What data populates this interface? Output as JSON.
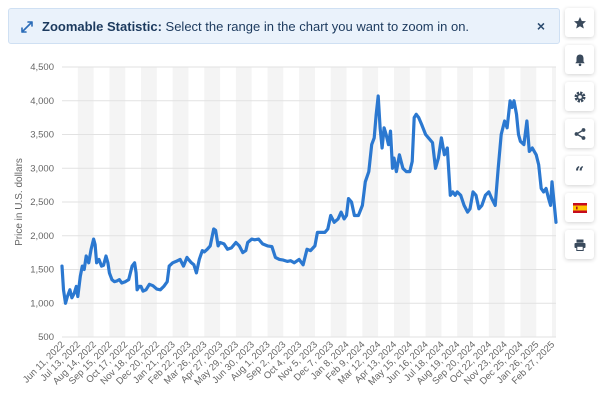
{
  "banner": {
    "title": "Zoomable Statistic:",
    "text": " Select the range in the chart you want to zoom in on.",
    "close_glyph": "×",
    "icon": "expand-arrows-icon"
  },
  "toolbar": {
    "buttons": [
      {
        "icon": "star-icon"
      },
      {
        "icon": "bell-icon"
      },
      {
        "icon": "gear-icon"
      },
      {
        "icon": "share-icon"
      },
      {
        "icon": "quote-icon",
        "glyph": "“"
      },
      {
        "icon": "spanish-flag-icon"
      },
      {
        "icon": "print-icon"
      }
    ]
  },
  "colors": {
    "line": "#2b78d0",
    "grid": "#e2e2e2",
    "band": "#f4f4f4"
  },
  "chart_data": {
    "type": "line",
    "ylabel": "Price in U.S. dollars",
    "ylim": [
      500,
      4500
    ],
    "yticks": [
      500,
      1000,
      1500,
      2000,
      2500,
      3000,
      3500,
      4000,
      4500
    ],
    "ytick_labels": [
      "500",
      "1,000",
      "1,500",
      "2,000",
      "2,500",
      "3,000",
      "3,500",
      "4,000",
      "4,500"
    ],
    "xtick_labels": [
      "Jun 11, 2022",
      "Jul 13, 2022",
      "Aug 14, 2022",
      "Sep 15, 2022",
      "Oct 17, 2022",
      "Nov 18, 2022",
      "Dec 20, 2022",
      "Jan 21, 2023",
      "Feb 22, 2023",
      "Mar 26, 2023",
      "Apr 27, 2023",
      "May 29, 2023",
      "Jun 30, 2023",
      "Aug 1, 2023",
      "Sep 2, 2023",
      "Oct 4, 2023",
      "Nov 5, 2023",
      "Dec 7, 2023",
      "Jan 8, 2024",
      "Feb 9, 2024",
      "Mar 12, 2024",
      "Apr 13, 2024",
      "May 15, 2024",
      "Jun 16, 2024",
      "Jul 18, 2024",
      "Aug 19, 2024",
      "Sep 20, 2024",
      "Oct 22, 2024",
      "Nov 23, 2024",
      "Dec 25, 2024",
      "Jan 26, 2025",
      "Feb 27, 2025"
    ],
    "grid": true,
    "series": [
      {
        "points": [
          [
            "2022-06-11",
            1550
          ],
          [
            "2022-06-14",
            1200
          ],
          [
            "2022-06-18",
            1000
          ],
          [
            "2022-06-22",
            1100
          ],
          [
            "2022-06-27",
            1200
          ],
          [
            "2022-07-01",
            1080
          ],
          [
            "2022-07-06",
            1150
          ],
          [
            "2022-07-10",
            1250
          ],
          [
            "2022-07-13",
            1100
          ],
          [
            "2022-07-18",
            1400
          ],
          [
            "2022-07-22",
            1550
          ],
          [
            "2022-07-26",
            1500
          ],
          [
            "2022-07-30",
            1700
          ],
          [
            "2022-08-04",
            1600
          ],
          [
            "2022-08-09",
            1800
          ],
          [
            "2022-08-14",
            1950
          ],
          [
            "2022-08-17",
            1870
          ],
          [
            "2022-08-20",
            1600
          ],
          [
            "2022-08-25",
            1650
          ],
          [
            "2022-08-30",
            1550
          ],
          [
            "2022-09-03",
            1560
          ],
          [
            "2022-09-08",
            1700
          ],
          [
            "2022-09-12",
            1600
          ],
          [
            "2022-09-15",
            1450
          ],
          [
            "2022-09-20",
            1350
          ],
          [
            "2022-09-25",
            1320
          ],
          [
            "2022-09-30",
            1330
          ],
          [
            "2022-10-05",
            1350
          ],
          [
            "2022-10-10",
            1300
          ],
          [
            "2022-10-17",
            1320
          ],
          [
            "2022-10-24",
            1350
          ],
          [
            "2022-10-31",
            1550
          ],
          [
            "2022-11-05",
            1600
          ],
          [
            "2022-11-08",
            1450
          ],
          [
            "2022-11-10",
            1200
          ],
          [
            "2022-11-14",
            1250
          ],
          [
            "2022-11-18",
            1250
          ],
          [
            "2022-11-22",
            1180
          ],
          [
            "2022-11-28",
            1200
          ],
          [
            "2022-12-05",
            1280
          ],
          [
            "2022-12-12",
            1260
          ],
          [
            "2022-12-20",
            1210
          ],
          [
            "2022-12-27",
            1200
          ],
          [
            "2023-01-03",
            1250
          ],
          [
            "2023-01-10",
            1320
          ],
          [
            "2023-01-14",
            1550
          ],
          [
            "2023-01-21",
            1600
          ],
          [
            "2023-01-28",
            1620
          ],
          [
            "2023-02-05",
            1650
          ],
          [
            "2023-02-12",
            1550
          ],
          [
            "2023-02-19",
            1680
          ],
          [
            "2023-02-22",
            1650
          ],
          [
            "2023-02-28",
            1600
          ],
          [
            "2023-03-05",
            1570
          ],
          [
            "2023-03-10",
            1450
          ],
          [
            "2023-03-16",
            1650
          ],
          [
            "2023-03-22",
            1780
          ],
          [
            "2023-03-26",
            1760
          ],
          [
            "2023-04-01",
            1800
          ],
          [
            "2023-04-07",
            1850
          ],
          [
            "2023-04-14",
            2100
          ],
          [
            "2023-04-18",
            2080
          ],
          [
            "2023-04-23",
            1850
          ],
          [
            "2023-04-27",
            1900
          ],
          [
            "2023-05-05",
            1880
          ],
          [
            "2023-05-12",
            1800
          ],
          [
            "2023-05-20",
            1820
          ],
          [
            "2023-05-29",
            1900
          ],
          [
            "2023-06-05",
            1850
          ],
          [
            "2023-06-12",
            1750
          ],
          [
            "2023-06-18",
            1780
          ],
          [
            "2023-06-22",
            1900
          ],
          [
            "2023-06-30",
            1950
          ],
          [
            "2023-07-06",
            1940
          ],
          [
            "2023-07-14",
            1950
          ],
          [
            "2023-07-22",
            1880
          ],
          [
            "2023-08-01",
            1850
          ],
          [
            "2023-08-10",
            1840
          ],
          [
            "2023-08-17",
            1680
          ],
          [
            "2023-08-25",
            1650
          ],
          [
            "2023-09-02",
            1640
          ],
          [
            "2023-09-10",
            1620
          ],
          [
            "2023-09-17",
            1630
          ],
          [
            "2023-09-24",
            1600
          ],
          [
            "2023-10-04",
            1650
          ],
          [
            "2023-10-12",
            1570
          ],
          [
            "2023-10-20",
            1800
          ],
          [
            "2023-10-27",
            1780
          ],
          [
            "2023-11-05",
            1850
          ],
          [
            "2023-11-10",
            2050
          ],
          [
            "2023-11-18",
            2050
          ],
          [
            "2023-11-25",
            2050
          ],
          [
            "2023-12-01",
            2100
          ],
          [
            "2023-12-07",
            2300
          ],
          [
            "2023-12-14",
            2200
          ],
          [
            "2023-12-22",
            2250
          ],
          [
            "2023-12-28",
            2350
          ],
          [
            "2024-01-03",
            2250
          ],
          [
            "2024-01-08",
            2300
          ],
          [
            "2024-01-12",
            2550
          ],
          [
            "2024-01-18",
            2500
          ],
          [
            "2024-01-24",
            2300
          ],
          [
            "2024-02-01",
            2300
          ],
          [
            "2024-02-09",
            2450
          ],
          [
            "2024-02-15",
            2800
          ],
          [
            "2024-02-22",
            2950
          ],
          [
            "2024-02-28",
            3350
          ],
          [
            "2024-03-04",
            3450
          ],
          [
            "2024-03-08",
            3800
          ],
          [
            "2024-03-12",
            4070
          ],
          [
            "2024-03-16",
            3600
          ],
          [
            "2024-03-20",
            3300
          ],
          [
            "2024-03-24",
            3600
          ],
          [
            "2024-03-28",
            3500
          ],
          [
            "2024-04-02",
            3350
          ],
          [
            "2024-04-06",
            3550
          ],
          [
            "2024-04-10",
            3000
          ],
          [
            "2024-04-13",
            3150
          ],
          [
            "2024-04-18",
            2950
          ],
          [
            "2024-04-24",
            3200
          ],
          [
            "2024-05-01",
            3000
          ],
          [
            "2024-05-08",
            2950
          ],
          [
            "2024-05-15",
            2950
          ],
          [
            "2024-05-20",
            3100
          ],
          [
            "2024-05-24",
            3750
          ],
          [
            "2024-05-28",
            3800
          ],
          [
            "2024-06-02",
            3750
          ],
          [
            "2024-06-08",
            3650
          ],
          [
            "2024-06-16",
            3500
          ],
          [
            "2024-06-22",
            3450
          ],
          [
            "2024-06-30",
            3380
          ],
          [
            "2024-07-06",
            3000
          ],
          [
            "2024-07-12",
            3150
          ],
          [
            "2024-07-18",
            3450
          ],
          [
            "2024-07-24",
            3200
          ],
          [
            "2024-07-30",
            3300
          ],
          [
            "2024-08-05",
            2600
          ],
          [
            "2024-08-10",
            2650
          ],
          [
            "2024-08-15",
            2600
          ],
          [
            "2024-08-19",
            2650
          ],
          [
            "2024-08-26",
            2600
          ],
          [
            "2024-09-02",
            2450
          ],
          [
            "2024-09-09",
            2350
          ],
          [
            "2024-09-14",
            2400
          ],
          [
            "2024-09-20",
            2650
          ],
          [
            "2024-09-26",
            2600
          ],
          [
            "2024-10-02",
            2400
          ],
          [
            "2024-10-08",
            2450
          ],
          [
            "2024-10-15",
            2600
          ],
          [
            "2024-10-22",
            2650
          ],
          [
            "2024-10-28",
            2550
          ],
          [
            "2024-11-04",
            2450
          ],
          [
            "2024-11-10",
            3000
          ],
          [
            "2024-11-16",
            3500
          ],
          [
            "2024-11-23",
            3700
          ],
          [
            "2024-11-28",
            3600
          ],
          [
            "2024-12-04",
            4000
          ],
          [
            "2024-12-08",
            3900
          ],
          [
            "2024-12-12",
            4000
          ],
          [
            "2024-12-17",
            3800
          ],
          [
            "2024-12-21",
            3500
          ],
          [
            "2024-12-25",
            3400
          ],
          [
            "2025-01-01",
            3350
          ],
          [
            "2025-01-07",
            3700
          ],
          [
            "2025-01-12",
            3250
          ],
          [
            "2025-01-18",
            3300
          ],
          [
            "2025-01-26",
            3200
          ],
          [
            "2025-01-31",
            3050
          ],
          [
            "2025-02-05",
            2700
          ],
          [
            "2025-02-10",
            2650
          ],
          [
            "2025-02-15",
            2700
          ],
          [
            "2025-02-20",
            2550
          ],
          [
            "2025-02-24",
            2450
          ],
          [
            "2025-02-27",
            2800
          ],
          [
            "2025-03-03",
            2500
          ],
          [
            "2025-03-07",
            2200
          ]
        ]
      }
    ]
  }
}
